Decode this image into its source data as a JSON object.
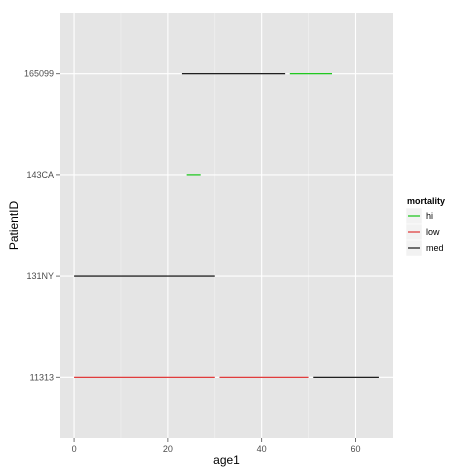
{
  "chart_data": {
    "type": "line",
    "title": "",
    "xlabel": "age1",
    "ylabel": "PatientID",
    "xlim": [
      -3,
      68
    ],
    "x_ticks": [
      0,
      20,
      40,
      60
    ],
    "x_tick_labels": [
      "0",
      "20",
      "40",
      "60"
    ],
    "y_categories": [
      "11313",
      "131NY",
      "143CA",
      "165099"
    ],
    "grid": true,
    "legend": {
      "title": "mortality",
      "position": "right",
      "entries": [
        {
          "label": "hi",
          "color": "#00c000"
        },
        {
          "label": "low",
          "color": "#dd2222"
        },
        {
          "label": "med",
          "color": "#000000"
        }
      ]
    },
    "segments": [
      {
        "patient": "165099",
        "start": 23,
        "end": 45,
        "mortality": "med"
      },
      {
        "patient": "165099",
        "start": 46,
        "end": 55,
        "mortality": "hi"
      },
      {
        "patient": "143CA",
        "start": 24,
        "end": 27,
        "mortality": "hi"
      },
      {
        "patient": "131NY",
        "start": 0,
        "end": 30,
        "mortality": "med"
      },
      {
        "patient": "11313",
        "start": 0,
        "end": 30,
        "mortality": "low"
      },
      {
        "patient": "11313",
        "start": 31,
        "end": 50,
        "mortality": "low"
      },
      {
        "patient": "11313",
        "start": 51,
        "end": 65,
        "mortality": "med"
      }
    ]
  }
}
